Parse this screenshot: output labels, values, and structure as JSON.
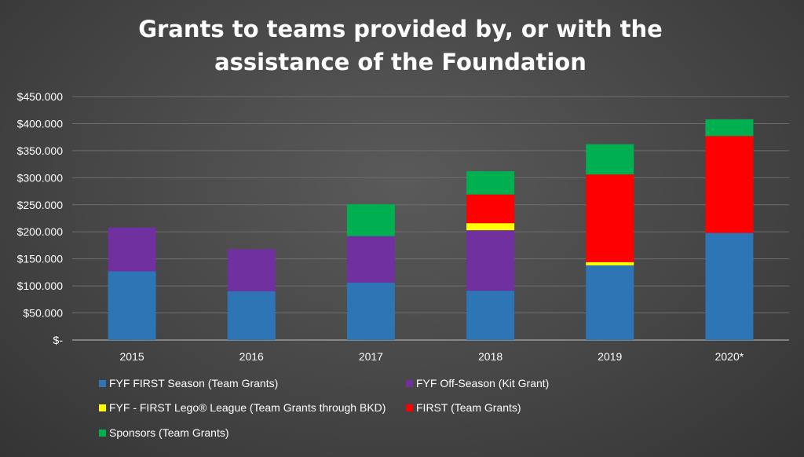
{
  "chart_data": {
    "type": "bar",
    "stacked": true,
    "title_lines": [
      "Grants to teams provided by, or with the",
      "assistance of the Foundation"
    ],
    "categories": [
      "2015",
      "2016",
      "2017",
      "2018",
      "2019",
      "2020*"
    ],
    "y_ticks": [
      "$450.000",
      "$400.000",
      "$350.000",
      "$300.000",
      "$250.000",
      "$200.000",
      "$150.000",
      "$100.000",
      "$50.000",
      "$-"
    ],
    "ylim": [
      0,
      450000
    ],
    "grid": true,
    "legend_position": "bottom",
    "series": [
      {
        "name": "FYF FIRST Season (Team Grants)",
        "color": "#2E75B6",
        "values": [
          127000,
          90000,
          106000,
          91000,
          138000,
          198000
        ]
      },
      {
        "name": "FYF Off-Season (Kit Grant)",
        "color": "#7030A0",
        "values": [
          81000,
          78000,
          86000,
          112000,
          0,
          0
        ]
      },
      {
        "name": "FYF - FIRST Lego® League (Team Grants through BKD)",
        "color": "#FFFF00",
        "values": [
          0,
          0,
          0,
          13000,
          6000,
          0
        ]
      },
      {
        "name": "FIRST (Team Grants)",
        "color": "#FF0000",
        "values": [
          0,
          0,
          0,
          53000,
          162000,
          179000
        ]
      },
      {
        "name": "Sponsors (Team Grants)",
        "color": "#00B050",
        "values": [
          0,
          0,
          59000,
          43000,
          56000,
          31000
        ]
      }
    ]
  }
}
